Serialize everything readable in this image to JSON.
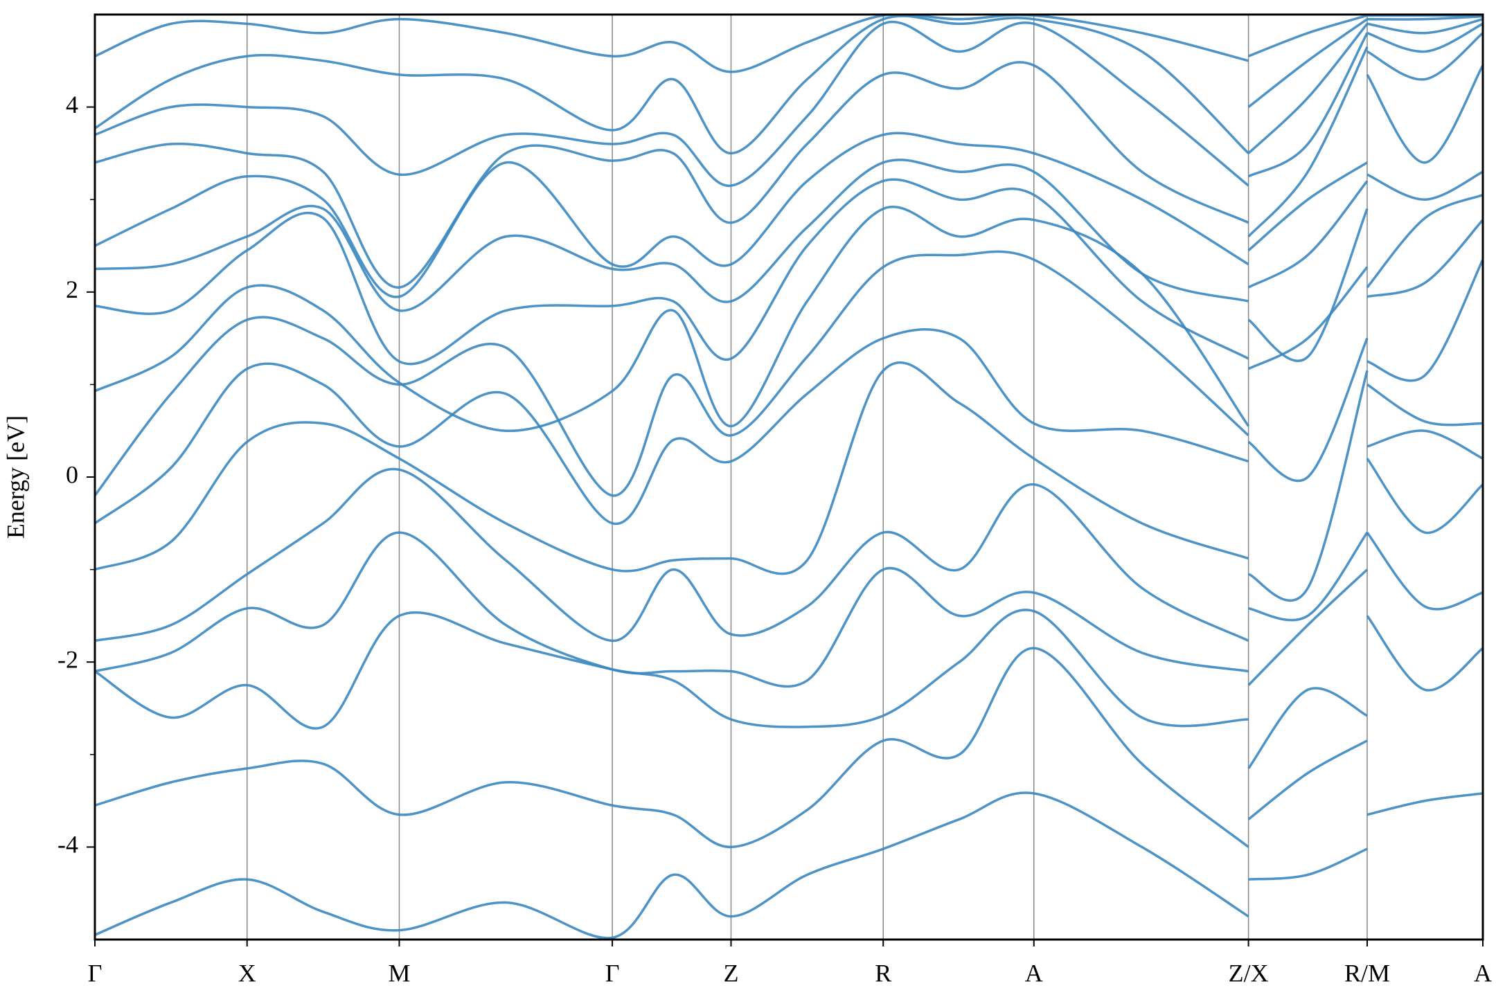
{
  "chart_data": {
    "type": "line",
    "ylabel": "Energy [eV]",
    "x": [
      0,
      0.25,
      0.5,
      0.75,
      1.0,
      1.35,
      1.7,
      1.9,
      2.09,
      2.34,
      2.59,
      2.84,
      3.085,
      3.44,
      3.79,
      3.79,
      3.79,
      3.985,
      4.18,
      4.18,
      4.18,
      4.37,
      4.56
    ],
    "xlim": [
      0,
      4.56
    ],
    "xticks": [
      {
        "value": 0,
        "label": "Γ"
      },
      {
        "value": 0.5,
        "label": "X"
      },
      {
        "value": 1.0,
        "label": "M"
      },
      {
        "value": 1.7,
        "label": "Γ"
      },
      {
        "value": 2.09,
        "label": "Z"
      },
      {
        "value": 2.59,
        "label": "R"
      },
      {
        "value": 3.085,
        "label": "A"
      },
      {
        "value": 3.79,
        "label": "Z/X"
      },
      {
        "value": 4.18,
        "label": "R/M"
      },
      {
        "value": 4.56,
        "label": "A"
      }
    ],
    "ylim": [
      -5,
      5
    ],
    "yticks": [
      -4,
      -2,
      0,
      2,
      4
    ],
    "yminorticks": [
      -3,
      -1,
      1,
      3
    ],
    "color": "#3a87c0",
    "series": [
      {
        "values": [
          -4.95,
          -4.6,
          -4.35,
          -4.7,
          -4.9,
          -4.6,
          -4.98,
          -4.3,
          -4.75,
          -4.3,
          -4.02,
          -3.7,
          -3.42,
          -4.0,
          -4.75,
          null,
          -4.35,
          -4.3,
          -4.02,
          null,
          -3.65,
          -3.5,
          -3.42
        ]
      },
      {
        "values": [
          -3.55,
          -3.3,
          -3.15,
          -3.1,
          -3.65,
          -3.3,
          -3.55,
          -3.65,
          -4.0,
          -3.6,
          -2.85,
          -3.0,
          -1.85,
          -3.1,
          -4.0,
          null,
          -3.7,
          -3.2,
          -2.85,
          null,
          -1.5,
          -2.3,
          -1.85
        ]
      },
      {
        "values": [
          -2.1,
          -2.6,
          -2.25,
          -2.7,
          -1.5,
          -1.8,
          -2.08,
          -2.2,
          -2.62,
          -2.7,
          -2.58,
          -2.0,
          -1.45,
          -2.6,
          -2.62,
          null,
          -3.15,
          -2.3,
          -2.58,
          null,
          -0.6,
          -1.4,
          -1.25
        ]
      },
      {
        "values": [
          -2.1,
          -1.9,
          -1.42,
          -1.6,
          -0.6,
          -1.6,
          -2.08,
          -2.1,
          -2.1,
          -2.2,
          -1.0,
          -1.5,
          -1.25,
          -1.9,
          -2.1,
          null,
          -2.25,
          -1.6,
          -1.0,
          null,
          0.2,
          -0.6,
          -0.08
        ]
      },
      {
        "values": [
          -1.77,
          -1.6,
          -1.05,
          -0.5,
          0.08,
          -0.9,
          -1.77,
          -1.0,
          -1.7,
          -1.4,
          -0.6,
          -1.0,
          -0.08,
          -1.2,
          -1.77,
          null,
          -1.42,
          -1.5,
          -0.6,
          null,
          0.33,
          0.5,
          0.2
        ]
      },
      {
        "values": [
          -1.0,
          -0.7,
          0.38,
          0.58,
          0.2,
          -0.5,
          -1.0,
          -0.9,
          -0.88,
          -0.9,
          1.15,
          0.8,
          0.2,
          -0.5,
          -0.88,
          null,
          -1.05,
          -1.2,
          1.15,
          null,
          1.0,
          0.6,
          0.58
        ]
      },
      {
        "values": [
          -0.5,
          0.1,
          1.17,
          1.0,
          0.33,
          0.9,
          -0.5,
          0.4,
          0.17,
          0.9,
          1.5,
          1.5,
          0.58,
          0.5,
          0.17,
          null,
          0.38,
          0.0,
          1.5,
          null,
          1.25,
          1.1,
          2.35
        ]
      },
      {
        "values": [
          -0.2,
          0.9,
          1.7,
          1.5,
          1.0,
          1.4,
          -0.2,
          1.1,
          0.45,
          1.3,
          2.27,
          2.4,
          2.35,
          1.5,
          0.45,
          null,
          1.17,
          1.5,
          2.27,
          null,
          1.95,
          2.1,
          2.78
        ]
      },
      {
        "values": [
          0.93,
          1.3,
          2.05,
          1.8,
          1.02,
          0.5,
          0.93,
          1.8,
          0.55,
          1.9,
          2.9,
          2.6,
          2.78,
          2.2,
          0.55,
          null,
          1.7,
          1.3,
          2.9,
          null,
          2.05,
          2.8,
          3.05
        ]
      },
      {
        "values": [
          1.85,
          1.8,
          2.45,
          2.8,
          1.25,
          1.8,
          1.85,
          1.9,
          1.28,
          2.5,
          3.2,
          3.0,
          3.05,
          1.9,
          1.28,
          null,
          2.05,
          2.4,
          3.2,
          null,
          3.27,
          3.0,
          3.3
        ]
      },
      {
        "values": [
          2.25,
          2.3,
          2.6,
          2.9,
          1.8,
          2.6,
          2.25,
          2.3,
          1.9,
          2.7,
          3.4,
          3.3,
          3.3,
          2.2,
          1.9,
          null,
          2.45,
          3.0,
          3.4,
          null,
          4.35,
          3.4,
          4.45
        ]
      },
      {
        "values": [
          2.5,
          2.9,
          3.25,
          3.0,
          1.95,
          3.4,
          2.3,
          2.6,
          2.3,
          3.2,
          3.7,
          3.6,
          3.5,
          3.0,
          2.3,
          null,
          2.6,
          3.3,
          4.65,
          null,
          4.6,
          4.3,
          4.8
        ]
      },
      {
        "values": [
          3.4,
          3.6,
          3.5,
          3.3,
          2.05,
          3.5,
          3.42,
          3.5,
          2.75,
          3.6,
          4.35,
          4.2,
          4.45,
          3.3,
          2.75,
          null,
          3.25,
          3.6,
          4.8,
          null,
          4.8,
          4.6,
          4.9
        ]
      },
      {
        "values": [
          3.7,
          4.0,
          4.0,
          3.9,
          3.27,
          3.7,
          3.6,
          3.7,
          3.15,
          3.9,
          4.9,
          4.6,
          4.9,
          4.1,
          3.15,
          null,
          3.5,
          4.1,
          4.9,
          null,
          4.9,
          4.8,
          4.95
        ]
      },
      {
        "values": [
          3.77,
          4.3,
          4.55,
          4.5,
          4.35,
          4.3,
          3.75,
          4.3,
          3.5,
          4.3,
          4.95,
          4.9,
          4.95,
          4.6,
          3.5,
          null,
          4.0,
          4.5,
          4.95,
          null,
          4.95,
          4.95,
          4.98
        ]
      },
      {
        "values": [
          4.55,
          4.9,
          4.9,
          4.8,
          4.95,
          4.8,
          4.55,
          4.7,
          4.38,
          4.7,
          4.99,
          4.95,
          4.99,
          4.8,
          4.5,
          null,
          4.55,
          4.8,
          4.99,
          null,
          4.99,
          4.99,
          4.99
        ]
      }
    ]
  }
}
